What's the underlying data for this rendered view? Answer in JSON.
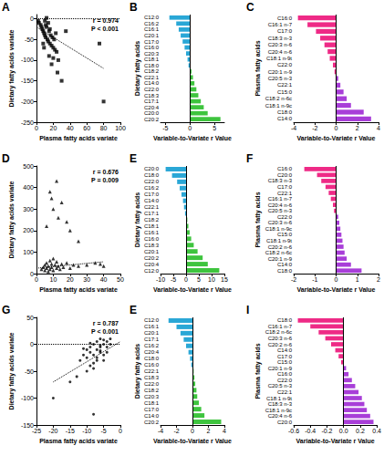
{
  "chart_data": [
    {
      "panel": "A",
      "type": "scatter",
      "xlabel": "Plasma fatty acids variate",
      "ylabel": "Dietary fatty acids variate",
      "annotations": [
        "r = 0.974",
        "P < 0.001"
      ],
      "xlim": [
        0,
        100
      ],
      "xticks": [
        0,
        20,
        40,
        60,
        80,
        100
      ],
      "ylim": [
        -250,
        10
      ],
      "yticks": [
        -250,
        -200,
        -150,
        -100,
        -50,
        0
      ],
      "series": [
        {
          "type": "scatter",
          "marker": "square",
          "color": "#000000",
          "x": [
            2,
            3,
            5,
            6,
            7,
            8,
            9,
            10,
            11,
            12,
            13,
            14,
            15,
            16,
            17,
            18,
            19,
            20,
            21,
            22,
            23,
            24,
            10,
            12,
            14,
            8,
            9,
            15,
            18,
            20,
            25,
            30,
            26,
            35,
            75,
            80,
            16,
            11
          ],
          "y": [
            -5,
            -10,
            -15,
            -20,
            -25,
            -30,
            -35,
            -40,
            -45,
            -20,
            -50,
            -55,
            -30,
            -60,
            -40,
            -65,
            -45,
            -70,
            -50,
            -75,
            -35,
            -80,
            -5,
            2,
            -10,
            -60,
            -70,
            -90,
            -110,
            -95,
            -130,
            -150,
            -100,
            -30,
            -60,
            -200,
            -25,
            -15
          ]
        },
        {
          "type": "line",
          "line_style": "dotted",
          "color": "#000000",
          "x": [
            0,
            100
          ],
          "y": [
            0,
            0
          ]
        },
        {
          "type": "line",
          "line_style": "dotted",
          "color": "#000000",
          "x": [
            0,
            80
          ],
          "y": [
            -20,
            -120
          ]
        }
      ]
    },
    {
      "panel": "B",
      "type": "bar",
      "orientation": "horizontal",
      "xlabel": "Variable-to-Variate r Value",
      "ylabel": "Dietary fatty acids",
      "categories": [
        "C12:0",
        "C16:2",
        "C16:1",
        "C20:1",
        "C17:0",
        "C16:0",
        "C20:3",
        "C18:1",
        "C18:0",
        "C18:2",
        "C22:1",
        "C14:0",
        "C22:0",
        "C18:3",
        "C17:1",
        "C20:4",
        "C20:0",
        "C20:2"
      ],
      "values": [
        -4.2,
        -2.8,
        -2.3,
        -1.9,
        -1.5,
        -1.1,
        -0.8,
        -0.5,
        -0.3,
        0.3,
        0.6,
        0.9,
        1.3,
        1.7,
        2.2,
        2.8,
        3.6,
        6.2
      ],
      "colors": [
        "#2aa7d6",
        "#2aa7d6",
        "#2aa7d6",
        "#2aa7d6",
        "#2aa7d6",
        "#2aa7d6",
        "#2aa7d6",
        "#2aa7d6",
        "#2aa7d6",
        "#3ec43e",
        "#3ec43e",
        "#3ec43e",
        "#3ec43e",
        "#3ec43e",
        "#3ec43e",
        "#3ec43e",
        "#3ec43e",
        "#3ec43e"
      ],
      "xlim": [
        -6,
        7
      ],
      "xticks": [
        -5,
        0,
        5
      ]
    },
    {
      "panel": "C",
      "type": "bar",
      "orientation": "horizontal",
      "xlabel": "Variable-to-Variate r Value",
      "ylabel": "Plasma fatty acids",
      "categories": [
        "C16:0",
        "C16:1 n-7",
        "C17:0",
        "C18:3 n-3",
        "C20:3 n-6",
        "C20:4 n-6",
        "C18:1 n-9t",
        "C22:0",
        "C20:1 n-9",
        "C20:5 n-3",
        "C22:1",
        "C15:0",
        "C18:2 n-6c",
        "C18:1 n-9c",
        "C18:0",
        "C14:0"
      ],
      "values": [
        -3.6,
        -2.7,
        -1.9,
        -1.5,
        -1.1,
        -0.8,
        -0.6,
        -0.3,
        -0.15,
        0.2,
        0.4,
        0.7,
        1.0,
        1.4,
        2.6,
        3.3
      ],
      "colors": [
        "#ee2a86",
        "#ee2a86",
        "#ee2a86",
        "#ee2a86",
        "#ee2a86",
        "#ee2a86",
        "#ee2a86",
        "#ee2a86",
        "#ee2a86",
        "#a83ed8",
        "#a83ed8",
        "#a83ed8",
        "#a83ed8",
        "#a83ed8",
        "#a83ed8",
        "#a83ed8"
      ],
      "xlim": [
        -4,
        4
      ],
      "xticks": [
        -4,
        -2,
        0,
        2,
        4
      ]
    },
    {
      "panel": "D",
      "type": "scatter",
      "xlabel": "Plasma fatty acids variate",
      "ylabel": "Dietary fatty acids variate",
      "annotations": [
        "r = 0.676",
        "P = 0.009"
      ],
      "xlim": [
        0,
        50
      ],
      "xticks": [
        0,
        10,
        20,
        30,
        40,
        50
      ],
      "ylim": [
        0,
        500
      ],
      "yticks": [
        0,
        100,
        200,
        300,
        400,
        500
      ],
      "series": [
        {
          "type": "scatter",
          "marker": "triangle",
          "color": "#000000",
          "x": [
            3,
            4,
            5,
            5,
            6,
            6,
            7,
            7,
            8,
            8,
            9,
            9,
            10,
            10,
            11,
            12,
            12,
            13,
            14,
            15,
            16,
            18,
            20,
            22,
            25,
            8,
            9,
            12,
            10,
            15,
            13,
            18,
            20,
            6,
            25,
            30,
            35,
            38,
            40
          ],
          "y": [
            20,
            30,
            15,
            40,
            25,
            50,
            10,
            35,
            60,
            20,
            45,
            30,
            15,
            70,
            40,
            25,
            55,
            35,
            20,
            45,
            30,
            50,
            25,
            40,
            35,
            380,
            350,
            430,
            300,
            330,
            260,
            240,
            200,
            220,
            150,
            40,
            50,
            45,
            35
          ]
        },
        {
          "type": "line",
          "line_style": "dotted",
          "color": "#000000",
          "x": [
            0,
            40
          ],
          "y": [
            25,
            55
          ]
        }
      ]
    },
    {
      "panel": "E",
      "type": "bar",
      "orientation": "horizontal",
      "xlabel": "Variable-to-Variate r Value",
      "ylabel": "Dietary fatty acids",
      "categories": [
        "C20:0",
        "C18:0",
        "C22:0",
        "C16:2",
        "C17:0",
        "C14:0",
        "C22:1",
        "C17:1",
        "C18:2",
        "C18:1",
        "C16:1",
        "C16:0",
        "C18:3",
        "C20:1",
        "C20:2",
        "C20:4",
        "C12:0"
      ],
      "values": [
        -8,
        -5.5,
        -3.5,
        -2.5,
        -1.8,
        -1.2,
        -0.8,
        -0.4,
        0.5,
        0.9,
        1.4,
        2.0,
        3.0,
        4.5,
        6.5,
        8.5,
        13
      ],
      "colors": [
        "#2aa7d6",
        "#2aa7d6",
        "#2aa7d6",
        "#2aa7d6",
        "#2aa7d6",
        "#2aa7d6",
        "#2aa7d6",
        "#2aa7d6",
        "#3ec43e",
        "#3ec43e",
        "#3ec43e",
        "#3ec43e",
        "#3ec43e",
        "#3ec43e",
        "#3ec43e",
        "#3ec43e",
        "#3ec43e"
      ],
      "xlim": [
        -10,
        15
      ],
      "xticks": [
        -10,
        -5,
        0,
        5,
        10,
        15
      ]
    },
    {
      "panel": "F",
      "type": "bar",
      "orientation": "horizontal",
      "xlabel": "Variable-to-Variate r Value",
      "ylabel": "Plasma fatty acids",
      "categories": [
        "C16:0",
        "C20:0",
        "C18:3 n-3",
        "C17:0",
        "C22:1",
        "C16:1 n-7",
        "C20:4 n-6",
        "C20:5 n-3",
        "C22:0",
        "C20:3 n-6",
        "C18:1 n-9c",
        "C15:0",
        "C18:1 n-9t",
        "C20:2 n-6",
        "C18:2 n-6c",
        "C20:1 n-9",
        "C14:0",
        "C18:0"
      ],
      "values": [
        -1.5,
        -0.9,
        -0.7,
        -0.5,
        -0.35,
        -0.25,
        -0.15,
        -0.1,
        0.1,
        0.15,
        0.2,
        0.25,
        0.3,
        0.35,
        0.4,
        0.5,
        0.7,
        1.2
      ],
      "colors": [
        "#ee2a86",
        "#ee2a86",
        "#ee2a86",
        "#ee2a86",
        "#ee2a86",
        "#ee2a86",
        "#ee2a86",
        "#ee2a86",
        "#a83ed8",
        "#a83ed8",
        "#a83ed8",
        "#a83ed8",
        "#a83ed8",
        "#a83ed8",
        "#a83ed8",
        "#a83ed8",
        "#a83ed8",
        "#a83ed8"
      ],
      "xlim": [
        -2,
        2
      ],
      "xticks": [
        -2,
        -1,
        0,
        1,
        2
      ]
    },
    {
      "panel": "G",
      "type": "scatter",
      "xlabel": "Plasma fatty acids variate",
      "ylabel": "Dietary fatty acids variate",
      "annotations": [
        "r = 0.787",
        "P < 0.001"
      ],
      "xlim": [
        -25,
        0
      ],
      "xticks": [
        -25,
        -20,
        -15,
        -10,
        -5,
        0
      ],
      "ylim": [
        -150,
        50
      ],
      "yticks": [
        -150,
        -100,
        -50,
        0,
        50
      ],
      "series": [
        {
          "type": "scatter",
          "marker": "circle",
          "color": "#000000",
          "x": [
            -12,
            -11,
            -10,
            -10,
            -9,
            -9,
            -8,
            -8,
            -8,
            -7,
            -7,
            -7,
            -6,
            -6,
            -6,
            -5,
            -5,
            -5,
            -4,
            -4,
            -9,
            -8,
            -7,
            -6,
            -10,
            -11,
            -5,
            -4,
            -3,
            -3,
            -13,
            -20,
            -8,
            -15,
            -9,
            -6
          ],
          "y": [
            -30,
            -20,
            -25,
            -10,
            -15,
            -5,
            -20,
            0,
            -35,
            -10,
            5,
            -25,
            -5,
            10,
            -15,
            0,
            -20,
            8,
            -5,
            5,
            -40,
            -45,
            -30,
            -12,
            -50,
            -8,
            -30,
            -15,
            0,
            10,
            -60,
            -100,
            -130,
            -70,
            2,
            -2
          ]
        },
        {
          "type": "line",
          "line_style": "dotted",
          "color": "#000000",
          "x": [
            -25,
            0
          ],
          "y": [
            0,
            0
          ]
        },
        {
          "type": "line",
          "line_style": "dotted",
          "color": "#000000",
          "x": [
            -20,
            0
          ],
          "y": [
            -70,
            5
          ]
        }
      ]
    },
    {
      "panel": "E",
      "type": "bar",
      "orientation": "horizontal",
      "xlabel": "Variable-to-Variate r Value",
      "ylabel": "Dietary fatty acids",
      "categories": [
        "C12:0",
        "C16:1",
        "C20:1",
        "C17:1",
        "C16:2",
        "C20:4",
        "C18:0",
        "C16:0",
        "C22:1",
        "C18:3",
        "C22:0",
        "C18:2",
        "C20:3",
        "C18:1",
        "C17:0",
        "C14:0",
        "C20:2"
      ],
      "values": [
        -3.0,
        -2.0,
        -1.5,
        -1.1,
        -0.8,
        -0.5,
        -0.3,
        -0.15,
        0.15,
        0.25,
        0.35,
        0.5,
        0.6,
        0.8,
        1.1,
        1.5,
        3.6
      ],
      "colors": [
        "#2aa7d6",
        "#2aa7d6",
        "#2aa7d6",
        "#2aa7d6",
        "#2aa7d6",
        "#2aa7d6",
        "#2aa7d6",
        "#2aa7d6",
        "#3ec43e",
        "#3ec43e",
        "#3ec43e",
        "#3ec43e",
        "#3ec43e",
        "#3ec43e",
        "#3ec43e",
        "#3ec43e",
        "#3ec43e"
      ],
      "xlim": [
        -4,
        4
      ],
      "xticks": [
        -4,
        -2,
        0,
        2,
        4
      ]
    },
    {
      "panel": "I",
      "type": "bar",
      "orientation": "horizontal",
      "xlabel": "Variable-to-Variate r Value",
      "ylabel": "Plasma fatty acids",
      "categories": [
        "C18:0",
        "C16:1 n-7",
        "C18:2 n-6c",
        "C20:3 n-6",
        "C20:2 n-6",
        "C14:0",
        "C17:0",
        "C15:0",
        "C20:1 n-9",
        "C16:0",
        "C22:0",
        "C20:5 n-3",
        "C22:1",
        "C18:1 n-9t",
        "C18:3 n-3",
        "C18:1 n-9c",
        "C20:4 n-6",
        "C20:0"
      ],
      "values": [
        -0.55,
        -0.4,
        -0.3,
        -0.22,
        -0.15,
        -0.1,
        -0.06,
        -0.03,
        0.03,
        0.06,
        0.1,
        0.14,
        0.18,
        0.22,
        0.25,
        0.28,
        0.32,
        0.36
      ],
      "colors": [
        "#ee2a86",
        "#ee2a86",
        "#ee2a86",
        "#ee2a86",
        "#ee2a86",
        "#ee2a86",
        "#ee2a86",
        "#ee2a86",
        "#a83ed8",
        "#a83ed8",
        "#a83ed8",
        "#a83ed8",
        "#a83ed8",
        "#a83ed8",
        "#a83ed8",
        "#a83ed8",
        "#a83ed8",
        "#a83ed8"
      ],
      "xlim": [
        -0.6,
        0.4
      ],
      "xticks": [
        -0.6,
        -0.4,
        -0.2,
        {
          "value": 0,
          "label": "0.0"
        },
        0.2,
        0.4
      ]
    }
  ]
}
